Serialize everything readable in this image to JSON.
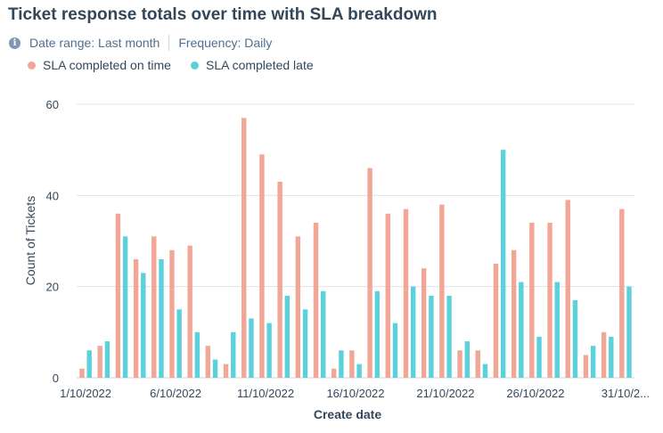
{
  "header": {
    "title": "Ticket response totals over time with SLA breakdown",
    "date_range": "Date range: Last month",
    "frequency": "Frequency: Daily"
  },
  "chart_data": {
    "type": "bar",
    "title": "Ticket response totals over time with SLA breakdown",
    "xlabel": "Create date",
    "ylabel": "Count of Tickets",
    "ylim": [
      0,
      60
    ],
    "yticks": [
      0,
      20,
      40,
      60
    ],
    "grid": true,
    "legend_position": "top-left",
    "categories": [
      "1/10/2022",
      "2/10/2022",
      "3/10/2022",
      "4/10/2022",
      "5/10/2022",
      "6/10/2022",
      "7/10/2022",
      "8/10/2022",
      "9/10/2022",
      "10/10/2022",
      "11/10/2022",
      "12/10/2022",
      "13/10/2022",
      "14/10/2022",
      "15/10/2022",
      "16/10/2022",
      "17/10/2022",
      "18/10/2022",
      "19/10/2022",
      "20/10/2022",
      "21/10/2022",
      "22/10/2022",
      "23/10/2022",
      "24/10/2022",
      "25/10/2022",
      "26/10/2022",
      "27/10/2022",
      "28/10/2022",
      "29/10/2022",
      "30/10/2022",
      "31/10/2022"
    ],
    "tick_labels": [
      {
        "index": 0,
        "label": "1/10/2022"
      },
      {
        "index": 5,
        "label": "6/10/2022"
      },
      {
        "index": 10,
        "label": "11/10/2022"
      },
      {
        "index": 15,
        "label": "16/10/2022"
      },
      {
        "index": 20,
        "label": "21/10/2022"
      },
      {
        "index": 25,
        "label": "26/10/2022"
      },
      {
        "index": 30,
        "label": "31/10/2..."
      }
    ],
    "series": [
      {
        "name": "SLA completed on time",
        "color": "#f2a695",
        "values": [
          2,
          7,
          36,
          26,
          31,
          28,
          29,
          7,
          3,
          57,
          49,
          43,
          31,
          34,
          2,
          6,
          46,
          36,
          37,
          24,
          38,
          6,
          6,
          25,
          28,
          34,
          34,
          39,
          5,
          10,
          37
        ]
      },
      {
        "name": "SLA completed late",
        "color": "#5bd1dc",
        "values": [
          6,
          8,
          31,
          23,
          26,
          15,
          10,
          4,
          10,
          13,
          12,
          18,
          15,
          19,
          6,
          3,
          19,
          12,
          20,
          18,
          18,
          8,
          3,
          50,
          21,
          9,
          21,
          17,
          7,
          9,
          20
        ]
      }
    ]
  }
}
